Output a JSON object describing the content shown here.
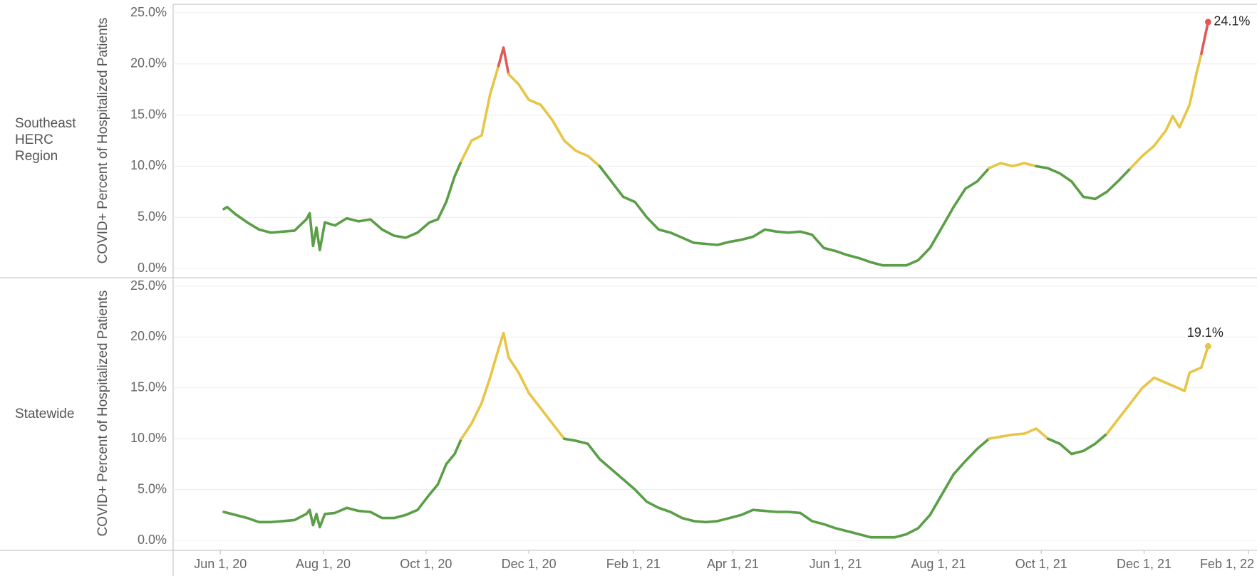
{
  "chart_data": [
    {
      "type": "line",
      "row_label": "Southeast HERC Region",
      "y_label": "COVID+ Percent of Hospitalized Patients",
      "xlim": [
        "2020-05-04",
        "2022-02-06"
      ],
      "ylim": [
        0,
        25
      ],
      "yticks": [
        {
          "value": 0,
          "label": "0.0%"
        },
        {
          "value": 5,
          "label": "5.0%"
        },
        {
          "value": 10,
          "label": "10.0%"
        },
        {
          "value": 15,
          "label": "15.0%"
        },
        {
          "value": 20,
          "label": "20.0%"
        },
        {
          "value": 25,
          "label": "25.0%"
        }
      ],
      "grid": true,
      "color_scale": {
        "thresholds": [
          10,
          20
        ],
        "colors": [
          "#5a9e47",
          "#e8c547",
          "#e05a55"
        ]
      },
      "end_label": "24.1%",
      "x": [
        "2020-06-03",
        "2020-06-05",
        "2020-06-10",
        "2020-06-17",
        "2020-06-24",
        "2020-07-01",
        "2020-07-08",
        "2020-07-15",
        "2020-07-22",
        "2020-07-24",
        "2020-07-26",
        "2020-07-28",
        "2020-07-30",
        "2020-08-02",
        "2020-08-08",
        "2020-08-15",
        "2020-08-22",
        "2020-08-29",
        "2020-09-05",
        "2020-09-12",
        "2020-09-19",
        "2020-09-26",
        "2020-10-03",
        "2020-10-08",
        "2020-10-13",
        "2020-10-18",
        "2020-10-22",
        "2020-10-28",
        "2020-11-03",
        "2020-11-08",
        "2020-11-13",
        "2020-11-16",
        "2020-11-19",
        "2020-11-25",
        "2020-12-01",
        "2020-12-08",
        "2020-12-15",
        "2020-12-22",
        "2020-12-29",
        "2021-01-05",
        "2021-01-12",
        "2021-01-19",
        "2021-01-26",
        "2021-02-02",
        "2021-02-09",
        "2021-02-16",
        "2021-02-23",
        "2021-03-02",
        "2021-03-09",
        "2021-03-16",
        "2021-03-23",
        "2021-03-30",
        "2021-04-06",
        "2021-04-13",
        "2021-04-20",
        "2021-04-27",
        "2021-05-04",
        "2021-05-11",
        "2021-05-18",
        "2021-05-25",
        "2021-06-01",
        "2021-06-08",
        "2021-06-15",
        "2021-06-22",
        "2021-06-29",
        "2021-07-06",
        "2021-07-13",
        "2021-07-20",
        "2021-07-27",
        "2021-08-03",
        "2021-08-10",
        "2021-08-17",
        "2021-08-24",
        "2021-08-31",
        "2021-09-07",
        "2021-09-14",
        "2021-09-21",
        "2021-09-28",
        "2021-10-05",
        "2021-10-12",
        "2021-10-19",
        "2021-10-26",
        "2021-11-02",
        "2021-11-09",
        "2021-11-16",
        "2021-11-23",
        "2021-11-30",
        "2021-12-07",
        "2021-12-14",
        "2021-12-18",
        "2021-12-22",
        "2021-12-28",
        "2022-01-01",
        "2022-01-04",
        "2022-01-08"
      ],
      "values": [
        5.8,
        6.0,
        5.3,
        4.5,
        3.8,
        3.5,
        3.6,
        3.7,
        4.8,
        5.4,
        2.2,
        4.0,
        1.8,
        4.5,
        4.2,
        4.9,
        4.6,
        4.8,
        3.8,
        3.2,
        3.0,
        3.5,
        4.5,
        4.8,
        6.5,
        9.0,
        10.5,
        12.5,
        13.0,
        17.0,
        19.8,
        21.6,
        19.0,
        18.0,
        16.5,
        16.0,
        14.5,
        12.5,
        11.5,
        11.0,
        10.0,
        8.5,
        7.0,
        6.5,
        5.0,
        3.8,
        3.5,
        3.0,
        2.5,
        2.4,
        2.3,
        2.6,
        2.8,
        3.1,
        3.8,
        3.6,
        3.5,
        3.6,
        3.3,
        2.0,
        1.7,
        1.3,
        1.0,
        0.6,
        0.3,
        0.3,
        0.3,
        0.8,
        2.0,
        4.0,
        6.0,
        7.8,
        8.5,
        9.8,
        10.3,
        10.0,
        10.3,
        10.0,
        9.8,
        9.3,
        8.5,
        7.0,
        6.8,
        7.5,
        8.6,
        9.8,
        11.0,
        12.0,
        13.5,
        14.9,
        13.8,
        16.0,
        19.0,
        21.0,
        24.1
      ]
    },
    {
      "type": "line",
      "row_label": "Statewide",
      "y_label": "COVID+ Percent of Hospitalized Patients",
      "xlim": [
        "2020-05-04",
        "2022-02-06"
      ],
      "ylim": [
        0,
        25
      ],
      "yticks": [
        {
          "value": 0,
          "label": "0.0%"
        },
        {
          "value": 5,
          "label": "5.0%"
        },
        {
          "value": 10,
          "label": "10.0%"
        },
        {
          "value": 15,
          "label": "15.0%"
        },
        {
          "value": 20,
          "label": "20.0%"
        },
        {
          "value": 25,
          "label": "25.0%"
        }
      ],
      "xticks": [
        {
          "value": "2020-06-01",
          "label": "Jun 1, 20"
        },
        {
          "value": "2020-08-01",
          "label": "Aug 1, 20"
        },
        {
          "value": "2020-10-01",
          "label": "Oct 1, 20"
        },
        {
          "value": "2020-12-01",
          "label": "Dec 1, 20"
        },
        {
          "value": "2021-02-01",
          "label": "Feb 1, 21"
        },
        {
          "value": "2021-04-01",
          "label": "Apr 1, 21"
        },
        {
          "value": "2021-06-01",
          "label": "Jun 1, 21"
        },
        {
          "value": "2021-08-01",
          "label": "Aug 1, 21"
        },
        {
          "value": "2021-10-01",
          "label": "Oct 1, 21"
        },
        {
          "value": "2021-12-01",
          "label": "Dec 1, 21"
        },
        {
          "value": "2022-02-01",
          "label": "Feb 1, 22"
        }
      ],
      "grid": true,
      "color_scale": {
        "thresholds": [
          10,
          20
        ],
        "colors": [
          "#5a9e47",
          "#e8c547",
          "#e05a55"
        ]
      },
      "end_label": "19.1%",
      "x": [
        "2020-06-03",
        "2020-06-10",
        "2020-06-17",
        "2020-06-24",
        "2020-07-01",
        "2020-07-08",
        "2020-07-15",
        "2020-07-22",
        "2020-07-24",
        "2020-07-26",
        "2020-07-28",
        "2020-07-30",
        "2020-08-02",
        "2020-08-08",
        "2020-08-15",
        "2020-08-22",
        "2020-08-29",
        "2020-09-05",
        "2020-09-12",
        "2020-09-19",
        "2020-09-26",
        "2020-10-03",
        "2020-10-08",
        "2020-10-13",
        "2020-10-18",
        "2020-10-22",
        "2020-10-28",
        "2020-11-03",
        "2020-11-08",
        "2020-11-13",
        "2020-11-16",
        "2020-11-19",
        "2020-11-25",
        "2020-12-01",
        "2020-12-08",
        "2020-12-15",
        "2020-12-22",
        "2020-12-29",
        "2021-01-05",
        "2021-01-12",
        "2021-01-19",
        "2021-01-26",
        "2021-02-02",
        "2021-02-09",
        "2021-02-16",
        "2021-02-23",
        "2021-03-02",
        "2021-03-09",
        "2021-03-16",
        "2021-03-23",
        "2021-03-30",
        "2021-04-06",
        "2021-04-13",
        "2021-04-20",
        "2021-04-27",
        "2021-05-04",
        "2021-05-11",
        "2021-05-18",
        "2021-05-25",
        "2021-06-01",
        "2021-06-08",
        "2021-06-15",
        "2021-06-22",
        "2021-06-29",
        "2021-07-06",
        "2021-07-13",
        "2021-07-20",
        "2021-07-27",
        "2021-08-03",
        "2021-08-10",
        "2021-08-17",
        "2021-08-24",
        "2021-08-31",
        "2021-09-07",
        "2021-09-14",
        "2021-09-21",
        "2021-09-28",
        "2021-10-05",
        "2021-10-12",
        "2021-10-19",
        "2021-10-26",
        "2021-11-02",
        "2021-11-09",
        "2021-11-16",
        "2021-11-23",
        "2021-11-30",
        "2021-12-07",
        "2021-12-14",
        "2021-12-21",
        "2021-12-25",
        "2021-12-28",
        "2022-01-04",
        "2022-01-08"
      ],
      "values": [
        2.8,
        2.5,
        2.2,
        1.8,
        1.8,
        1.9,
        2.0,
        2.6,
        3.0,
        1.5,
        2.6,
        1.3,
        2.6,
        2.7,
        3.2,
        2.9,
        2.8,
        2.2,
        2.2,
        2.5,
        3.0,
        4.5,
        5.5,
        7.5,
        8.5,
        10.0,
        11.5,
        13.5,
        16.0,
        18.8,
        20.4,
        18.0,
        16.5,
        14.5,
        13.0,
        11.5,
        10.0,
        9.8,
        9.5,
        8.0,
        7.0,
        6.0,
        5.0,
        3.8,
        3.2,
        2.8,
        2.2,
        1.9,
        1.8,
        1.9,
        2.2,
        2.5,
        3.0,
        2.9,
        2.8,
        2.8,
        2.7,
        1.9,
        1.6,
        1.2,
        0.9,
        0.6,
        0.3,
        0.3,
        0.3,
        0.6,
        1.2,
        2.5,
        4.5,
        6.5,
        7.8,
        9.0,
        10.0,
        10.2,
        10.4,
        10.5,
        11.0,
        10.0,
        9.5,
        8.5,
        8.8,
        9.5,
        10.5,
        12.0,
        13.5,
        15.0,
        16.0,
        15.5,
        15.0,
        14.7,
        16.5,
        17.0,
        19.1
      ]
    }
  ]
}
